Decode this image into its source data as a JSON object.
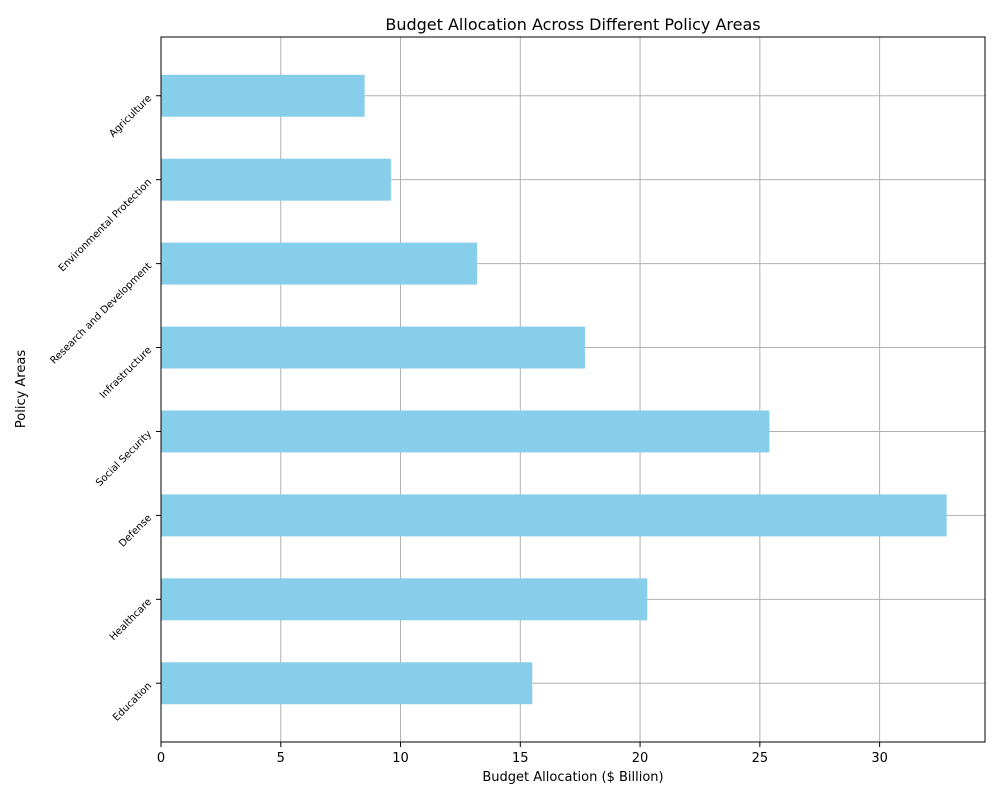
{
  "chart_data": {
    "type": "bar",
    "orientation": "horizontal",
    "title": "Budget Allocation Across Different Policy Areas",
    "xlabel": "Budget Allocation ($ Billion)",
    "ylabel": "Policy Areas",
    "categories": [
      "Education",
      "Healthcare",
      "Defense",
      "Social Security",
      "Infrastructure",
      "Research and Development",
      "Environmental Protection",
      "Agriculture"
    ],
    "values": [
      15.5,
      20.3,
      32.8,
      25.4,
      17.7,
      13.2,
      9.6,
      8.5
    ],
    "xlim": [
      0,
      34.4
    ],
    "xticks": [
      0,
      5,
      10,
      15,
      20,
      25,
      30
    ],
    "xtick_labels": [
      "0",
      "5",
      "10",
      "15",
      "20",
      "25",
      "30"
    ],
    "grid": true,
    "bar_color": "#87ceeb",
    "grid_color": "#b0b0b0"
  }
}
